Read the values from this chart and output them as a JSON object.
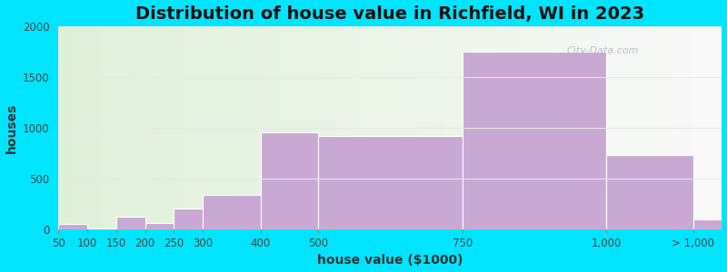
{
  "title": "Distribution of house value in Richfield, WI in 2023",
  "xlabel": "house value ($1000)",
  "ylabel": "houses",
  "bin_edges": [
    50,
    100,
    150,
    200,
    250,
    300,
    400,
    500,
    750,
    1000,
    1150
  ],
  "bar_values": [
    55,
    5,
    120,
    65,
    200,
    340,
    950,
    920,
    1745,
    730,
    100
  ],
  "xtick_positions": [
    50,
    100,
    150,
    200,
    250,
    300,
    400,
    500,
    750,
    1000,
    1150
  ],
  "xtick_labels": [
    "50",
    "100",
    "150",
    "200",
    "250",
    "300",
    "400",
    "500",
    "750",
    "1,000",
    "> 1,000"
  ],
  "bar_color": "#C9A8D4",
  "bar_edgecolor": "#ffffff",
  "ylim": [
    0,
    2000
  ],
  "yticks": [
    0,
    500,
    1000,
    1500,
    2000
  ],
  "background_outer": "#00E5FF",
  "bg_left_color": "#dff0d8",
  "bg_right_color": "#f0f5f0",
  "title_fontsize": 14,
  "axis_label_fontsize": 10,
  "tick_fontsize": 8.5,
  "watermark_text": "City-Data.com",
  "grid_color": "#e8e8e8",
  "xlim": [
    50,
    1200
  ]
}
